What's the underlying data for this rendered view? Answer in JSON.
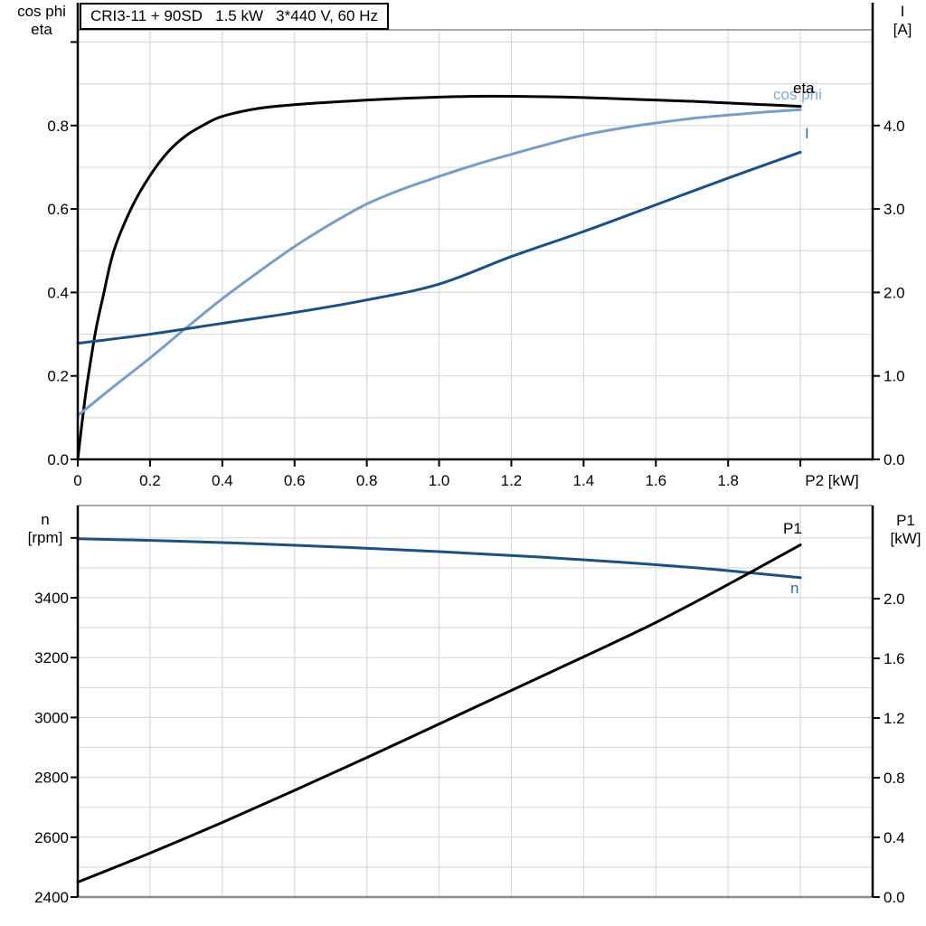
{
  "title_box": {
    "text": "CRI3-11 + 90SD   1.5 kW   3*440 V, 60 Hz"
  },
  "colors": {
    "black": "#000000",
    "dark_blue_curve": "#1B5080",
    "light_blue_curve": "#7A9CC8",
    "blue_label": "#2E6DA4",
    "light_blue_label": "#85A8D0",
    "gridline": "#D9D9D9",
    "frame_gray": "#8C8C8C",
    "background": "#FFFFFF"
  },
  "axis_corner_labels": {
    "top_left_line1": "cos phi",
    "top_left_line2": "eta",
    "top_right_line1": "I",
    "top_right_line2": "[A]",
    "bottom_left_line1": "n",
    "bottom_left_line2": "[rpm]",
    "bottom_right_line1": "P1",
    "bottom_right_line2": "[kW]"
  },
  "curve_labels": {
    "eta": "eta",
    "cos_phi": "cos phi",
    "current": "I",
    "p1": "P1",
    "n": "n"
  },
  "chart_data": [
    {
      "type": "line",
      "title": "CRI3-11 + 90SD   1.5 kW   3*440 V, 60 Hz",
      "xlabel": "P2 [kW]",
      "ylabel_left": "cos phi / eta",
      "ylabel_right": "I [A]",
      "xlim": [
        0,
        2.2
      ],
      "ylim_left": [
        0,
        1.03
      ],
      "ylim_right": [
        0,
        5.15
      ],
      "grid": "on",
      "gridlines": {
        "x_values": [
          0.2,
          0.4,
          0.6,
          0.8,
          1.0,
          1.2,
          1.4,
          1.6,
          1.8,
          2.0
        ],
        "y_values": [
          0.1,
          0.2,
          0.3,
          0.4,
          0.5,
          0.6,
          0.7,
          0.8,
          0.9,
          1.0
        ]
      },
      "axes": {
        "x": {
          "tick_values": [
            0,
            0.2,
            0.4,
            0.6,
            0.8,
            1.0,
            1.2,
            1.4,
            1.6,
            1.8,
            2.0
          ],
          "tick_labels": [
            "0",
            "0.2",
            "0.4",
            "0.6",
            "0.8",
            "1.0",
            "1.2",
            "1.4",
            "1.6",
            "1.8",
            ""
          ],
          "axis_label": "P2 [kW]"
        },
        "left": {
          "tick_values": [
            0,
            0.2,
            0.4,
            0.6,
            0.8,
            1.0
          ],
          "tick_labels": [
            "0.0",
            "0.2",
            "0.4",
            "0.6",
            "0.8",
            ""
          ]
        },
        "right": {
          "tick_values": [
            0,
            1.0,
            2.0,
            3.0,
            4.0
          ],
          "tick_labels": [
            "0.0",
            "1.0",
            "2.0",
            "3.0",
            "4.0"
          ]
        }
      },
      "series": [
        {
          "name": "eta",
          "axis": "left",
          "color": "#000000",
          "points": [
            [
              0,
              0
            ],
            [
              0.01,
              0.075
            ],
            [
              0.02,
              0.145
            ],
            [
              0.03,
              0.205
            ],
            [
              0.05,
              0.31
            ],
            [
              0.07,
              0.39
            ],
            [
              0.1,
              0.5
            ],
            [
              0.15,
              0.605
            ],
            [
              0.2,
              0.68
            ],
            [
              0.25,
              0.737
            ],
            [
              0.3,
              0.776
            ],
            [
              0.35,
              0.802
            ],
            [
              0.4,
              0.822
            ],
            [
              0.5,
              0.841
            ],
            [
              0.6,
              0.85
            ],
            [
              0.7,
              0.856
            ],
            [
              0.8,
              0.861
            ],
            [
              0.9,
              0.865
            ],
            [
              1.0,
              0.868
            ],
            [
              1.1,
              0.87
            ],
            [
              1.2,
              0.87
            ],
            [
              1.3,
              0.869
            ],
            [
              1.4,
              0.867
            ],
            [
              1.5,
              0.864
            ],
            [
              1.6,
              0.861
            ],
            [
              1.7,
              0.858
            ],
            [
              1.8,
              0.854
            ],
            [
              1.9,
              0.85
            ],
            [
              2.0,
              0.846
            ]
          ]
        },
        {
          "name": "cos phi",
          "axis": "left",
          "color": "#7A9CC8",
          "points": [
            [
              0,
              0.105
            ],
            [
              0.1,
              0.175
            ],
            [
              0.2,
              0.243
            ],
            [
              0.3,
              0.315
            ],
            [
              0.4,
              0.385
            ],
            [
              0.5,
              0.449
            ],
            [
              0.6,
              0.51
            ],
            [
              0.7,
              0.564
            ],
            [
              0.8,
              0.612
            ],
            [
              0.9,
              0.648
            ],
            [
              1.0,
              0.678
            ],
            [
              1.1,
              0.706
            ],
            [
              1.2,
              0.731
            ],
            [
              1.3,
              0.755
            ],
            [
              1.4,
              0.777
            ],
            [
              1.5,
              0.793
            ],
            [
              1.6,
              0.806
            ],
            [
              1.7,
              0.817
            ],
            [
              1.8,
              0.825
            ],
            [
              1.9,
              0.832
            ],
            [
              2.0,
              0.838
            ]
          ]
        },
        {
          "name": "I",
          "axis": "right",
          "color": "#1B5080",
          "points": [
            [
              0,
              1.39
            ],
            [
              0.2,
              1.5
            ],
            [
              0.4,
              1.63
            ],
            [
              0.6,
              1.76
            ],
            [
              0.8,
              1.91
            ],
            [
              1.0,
              2.1
            ],
            [
              1.2,
              2.43
            ],
            [
              1.4,
              2.73
            ],
            [
              1.6,
              3.05
            ],
            [
              1.8,
              3.37
            ],
            [
              2.0,
              3.68
            ]
          ]
        }
      ]
    },
    {
      "type": "line",
      "title": "",
      "xlabel": "",
      "ylabel_left": "n [rpm]",
      "ylabel_right": "P1 [kW]",
      "xlim": [
        0,
        2.2
      ],
      "ylim_left": [
        2400,
        3710
      ],
      "ylim_right": [
        0,
        2.62
      ],
      "grid": "on",
      "gridlines": {
        "x_values": [
          0.2,
          0.4,
          0.6,
          0.8,
          1.0,
          1.2,
          1.4,
          1.6,
          1.8,
          2.0
        ],
        "y_values": [
          2500,
          2600,
          2700,
          2800,
          2900,
          3000,
          3100,
          3200,
          3300,
          3400,
          3500,
          3600
        ]
      },
      "axes": {
        "x": {
          "tick_values": [],
          "tick_labels": [],
          "axis_label": ""
        },
        "left": {
          "tick_values": [
            2400,
            2600,
            2800,
            3000,
            3200,
            3400,
            3600
          ],
          "tick_labels": [
            "2400",
            "2600",
            "2800",
            "3000",
            "3200",
            "3400",
            ""
          ]
        },
        "right": {
          "tick_values": [
            0,
            0.4,
            0.8,
            1.2,
            1.6,
            2.0
          ],
          "tick_labels": [
            "0.0",
            "0.4",
            "0.8",
            "1.2",
            "1.6",
            "2.0"
          ]
        }
      },
      "series": [
        {
          "name": "n",
          "axis": "left",
          "color": "#1B5080",
          "points": [
            [
              0,
              3597
            ],
            [
              0.25,
              3590
            ],
            [
              0.5,
              3580
            ],
            [
              0.75,
              3568
            ],
            [
              1.0,
              3554
            ],
            [
              1.25,
              3538
            ],
            [
              1.5,
              3519
            ],
            [
              1.75,
              3496
            ],
            [
              2.0,
              3467
            ]
          ]
        },
        {
          "name": "P1",
          "axis": "right",
          "color": "#000000",
          "points": [
            [
              0,
              0.1
            ],
            [
              0.2,
              0.295
            ],
            [
              0.4,
              0.5
            ],
            [
              0.6,
              0.715
            ],
            [
              0.8,
              0.935
            ],
            [
              1.0,
              1.16
            ],
            [
              1.2,
              1.385
            ],
            [
              1.4,
              1.61
            ],
            [
              1.6,
              1.84
            ],
            [
              1.8,
              2.095
            ],
            [
              2.0,
              2.36
            ]
          ]
        }
      ]
    }
  ]
}
